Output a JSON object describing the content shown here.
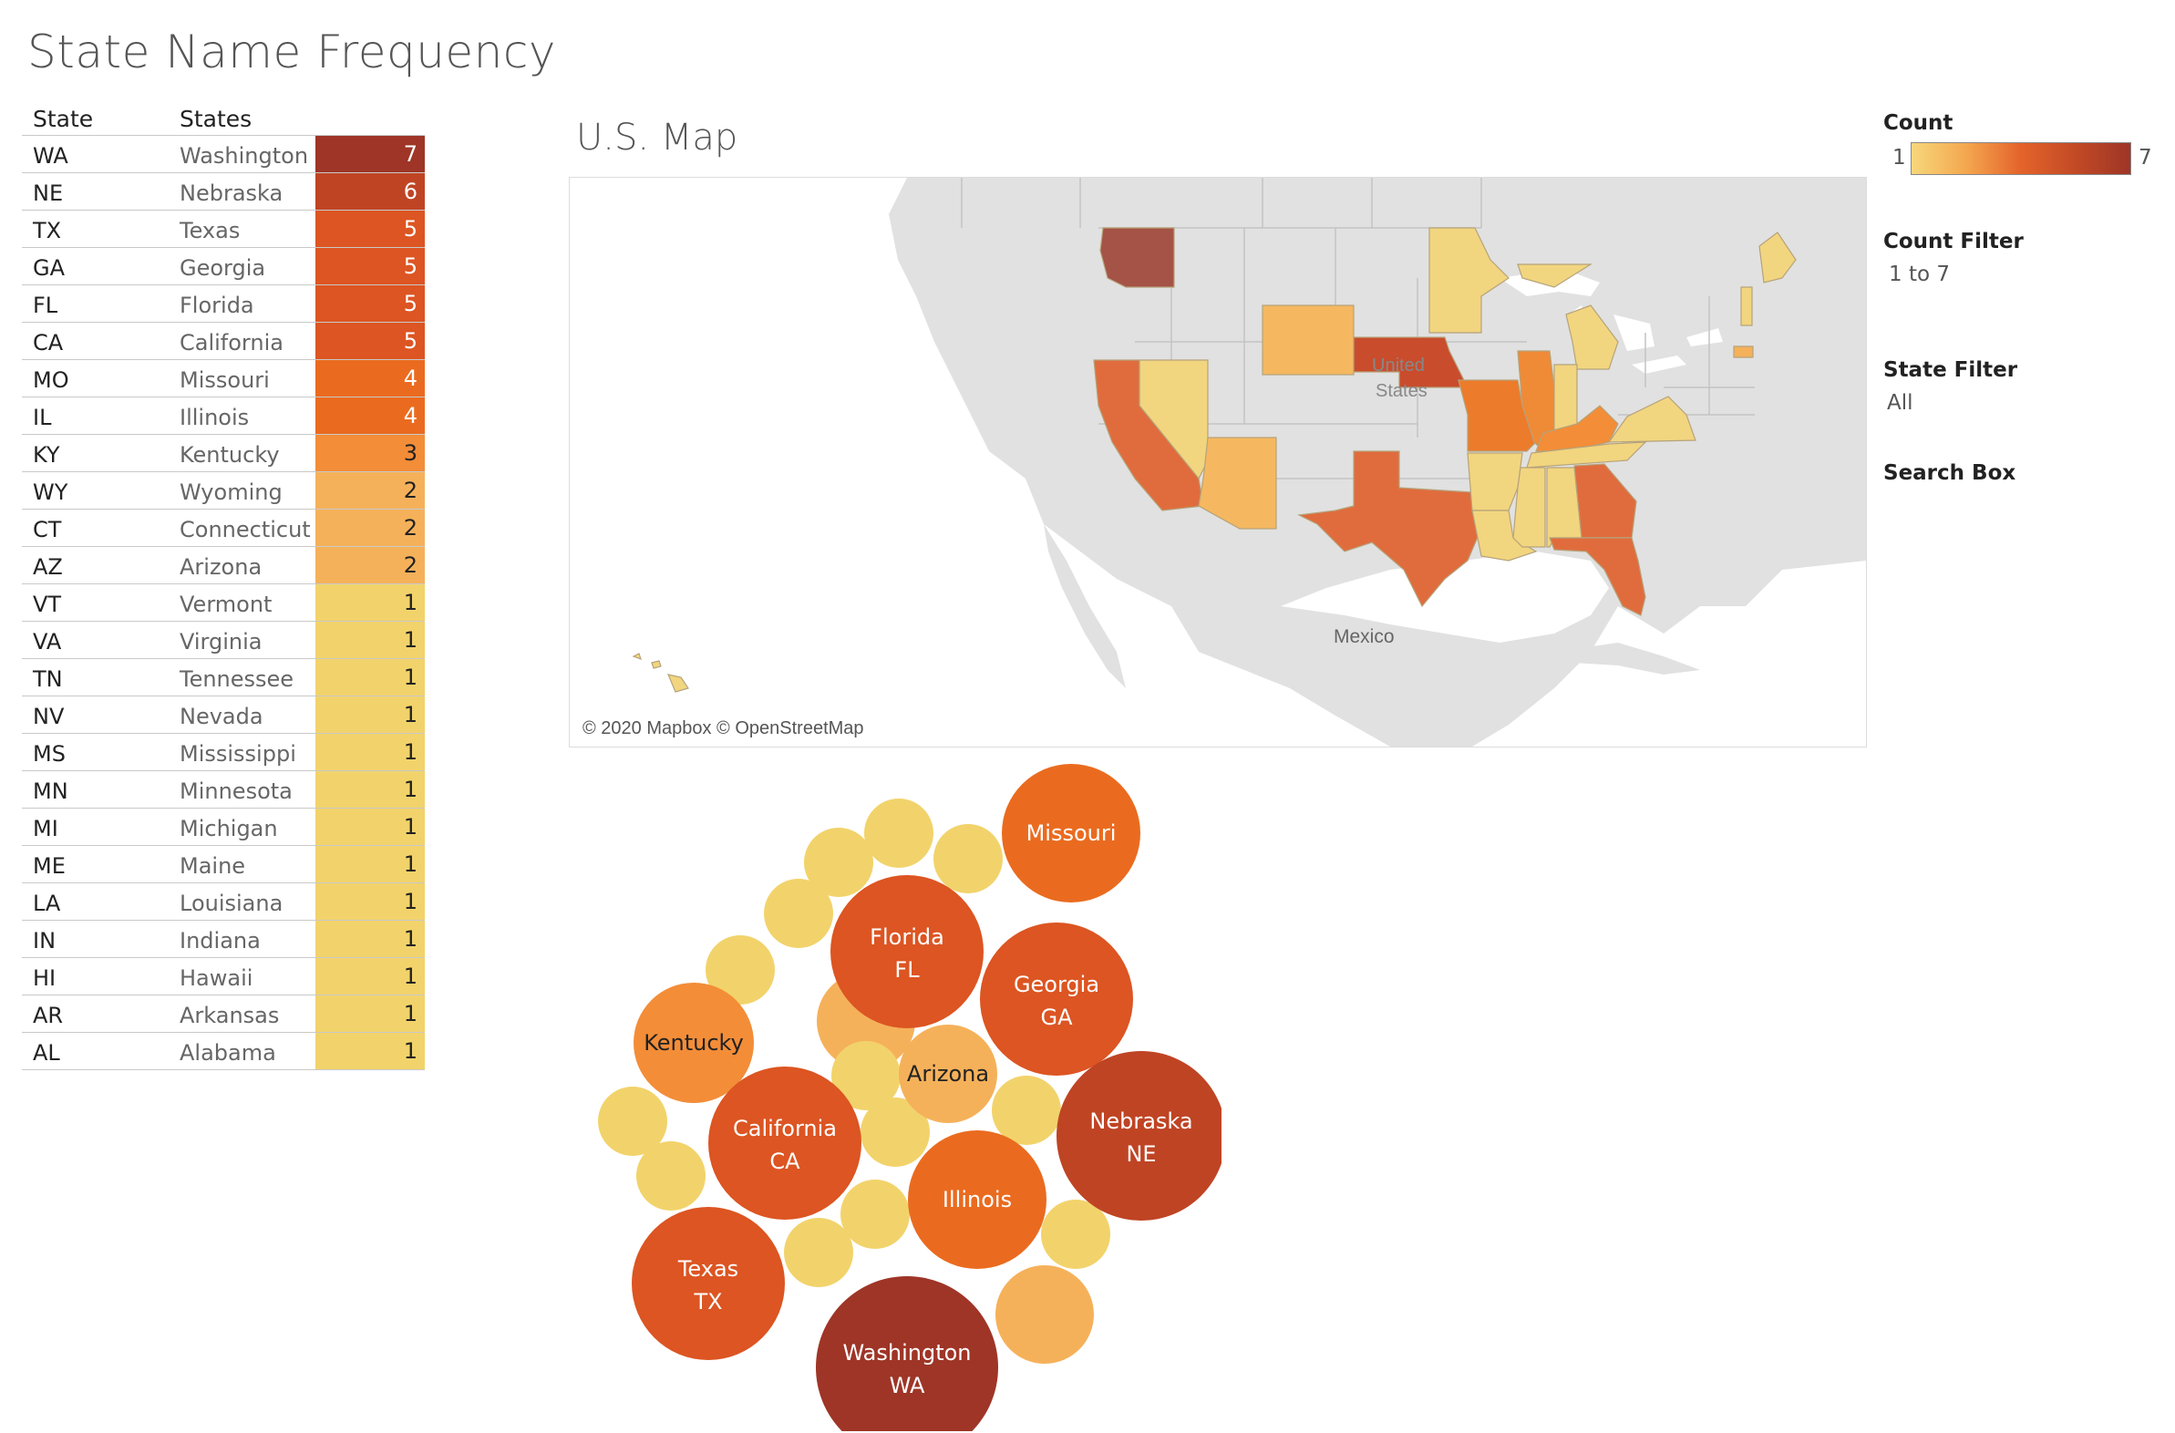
{
  "dashboard": {
    "title": "State Name Frequency"
  },
  "table": {
    "headers": {
      "state": "State",
      "states": "States"
    },
    "rows": [
      {
        "abbr": "WA",
        "name": "Washington",
        "count": "7",
        "color": "#9e3527",
        "text": "#ffffff"
      },
      {
        "abbr": "NE",
        "name": "Nebraska",
        "count": "6",
        "color": "#bf4424",
        "text": "#ffffff"
      },
      {
        "abbr": "TX",
        "name": "Texas",
        "count": "5",
        "color": "#dc5522",
        "text": "#ffffff"
      },
      {
        "abbr": "GA",
        "name": "Georgia",
        "count": "5",
        "color": "#dc5522",
        "text": "#ffffff"
      },
      {
        "abbr": "FL",
        "name": "Florida",
        "count": "5",
        "color": "#dc5522",
        "text": "#ffffff"
      },
      {
        "abbr": "CA",
        "name": "California",
        "count": "5",
        "color": "#dc5522",
        "text": "#ffffff"
      },
      {
        "abbr": "MO",
        "name": "Missouri",
        "count": "4",
        "color": "#ea6b1f",
        "text": "#ffffff"
      },
      {
        "abbr": "IL",
        "name": "Illinois",
        "count": "4",
        "color": "#ea6b1f",
        "text": "#ffffff"
      },
      {
        "abbr": "KY",
        "name": "Kentucky",
        "count": "3",
        "color": "#f38d38",
        "text": "#222222"
      },
      {
        "abbr": "WY",
        "name": "Wyoming",
        "count": "2",
        "color": "#f5b15a",
        "text": "#222222"
      },
      {
        "abbr": "CT",
        "name": "Connecticut",
        "count": "2",
        "color": "#f5b15a",
        "text": "#222222"
      },
      {
        "abbr": "AZ",
        "name": "Arizona",
        "count": "2",
        "color": "#f5b15a",
        "text": "#222222"
      },
      {
        "abbr": "VT",
        "name": "Vermont",
        "count": "1",
        "color": "#f2d36b",
        "text": "#222222"
      },
      {
        "abbr": "VA",
        "name": "Virginia",
        "count": "1",
        "color": "#f2d36b",
        "text": "#222222"
      },
      {
        "abbr": "TN",
        "name": "Tennessee",
        "count": "1",
        "color": "#f2d36b",
        "text": "#222222"
      },
      {
        "abbr": "NV",
        "name": "Nevada",
        "count": "1",
        "color": "#f2d36b",
        "text": "#222222"
      },
      {
        "abbr": "MS",
        "name": "Mississippi",
        "count": "1",
        "color": "#f2d36b",
        "text": "#222222"
      },
      {
        "abbr": "MN",
        "name": "Minnesota",
        "count": "1",
        "color": "#f2d36b",
        "text": "#222222"
      },
      {
        "abbr": "MI",
        "name": "Michigan",
        "count": "1",
        "color": "#f2d36b",
        "text": "#222222"
      },
      {
        "abbr": "ME",
        "name": "Maine",
        "count": "1",
        "color": "#f2d36b",
        "text": "#222222"
      },
      {
        "abbr": "LA",
        "name": "Louisiana",
        "count": "1",
        "color": "#f2d36b",
        "text": "#222222"
      },
      {
        "abbr": "IN",
        "name": "Indiana",
        "count": "1",
        "color": "#f2d36b",
        "text": "#222222"
      },
      {
        "abbr": "HI",
        "name": "Hawaii",
        "count": "1",
        "color": "#f2d36b",
        "text": "#222222"
      },
      {
        "abbr": "AR",
        "name": "Arkansas",
        "count": "1",
        "color": "#f2d36b",
        "text": "#222222"
      },
      {
        "abbr": "AL",
        "name": "Alabama",
        "count": "1",
        "color": "#f2d36b",
        "text": "#222222"
      }
    ]
  },
  "map": {
    "title": "U.S. Map",
    "credit": "© 2020 Mapbox © OpenStreetMap",
    "labels": {
      "us_line1": "United",
      "us_line2": "States",
      "mexico": "Mexico"
    },
    "colors": {
      "land": "#e1e1e1",
      "water": "#ffffff",
      "border": "#c4c4c4"
    }
  },
  "legend": {
    "title": "Count",
    "min": "1",
    "max": "7",
    "gradient": [
      "#f7d77b",
      "#f4a74f",
      "#e4632b",
      "#c24a25",
      "#9e3527"
    ]
  },
  "filters": {
    "count": {
      "label": "Count Filter",
      "value": "1 to 7"
    },
    "state": {
      "label": "State Filter",
      "value": "All"
    },
    "search": {
      "label": "Search Box"
    }
  },
  "bubbles": [
    {
      "name": "Missouri",
      "abbr": "",
      "count": 4,
      "color": "#ea6b1f",
      "text": "#ffffff"
    },
    {
      "name": "Florida",
      "abbr": "FL",
      "count": 5,
      "color": "#dc5522",
      "text": "#ffffff"
    },
    {
      "name": "Georgia",
      "abbr": "GA",
      "count": 5,
      "color": "#dc5522",
      "text": "#ffffff"
    },
    {
      "name": "Kentucky",
      "abbr": "",
      "count": 3,
      "color": "#f38d38",
      "text": "#222222"
    },
    {
      "name": "Arizona",
      "abbr": "",
      "count": 2,
      "color": "#f5b15a",
      "text": "#222222"
    },
    {
      "name": "California",
      "abbr": "CA",
      "count": 5,
      "color": "#dc5522",
      "text": "#ffffff"
    },
    {
      "name": "Nebraska",
      "abbr": "NE",
      "count": 6,
      "color": "#bf4424",
      "text": "#ffffff"
    },
    {
      "name": "Illinois",
      "abbr": "",
      "count": 4,
      "color": "#ea6b1f",
      "text": "#ffffff"
    },
    {
      "name": "Texas",
      "abbr": "TX",
      "count": 5,
      "color": "#dc5522",
      "text": "#ffffff"
    },
    {
      "name": "Washington",
      "abbr": "WA",
      "count": 7,
      "color": "#9e3527",
      "text": "#ffffff"
    }
  ]
}
